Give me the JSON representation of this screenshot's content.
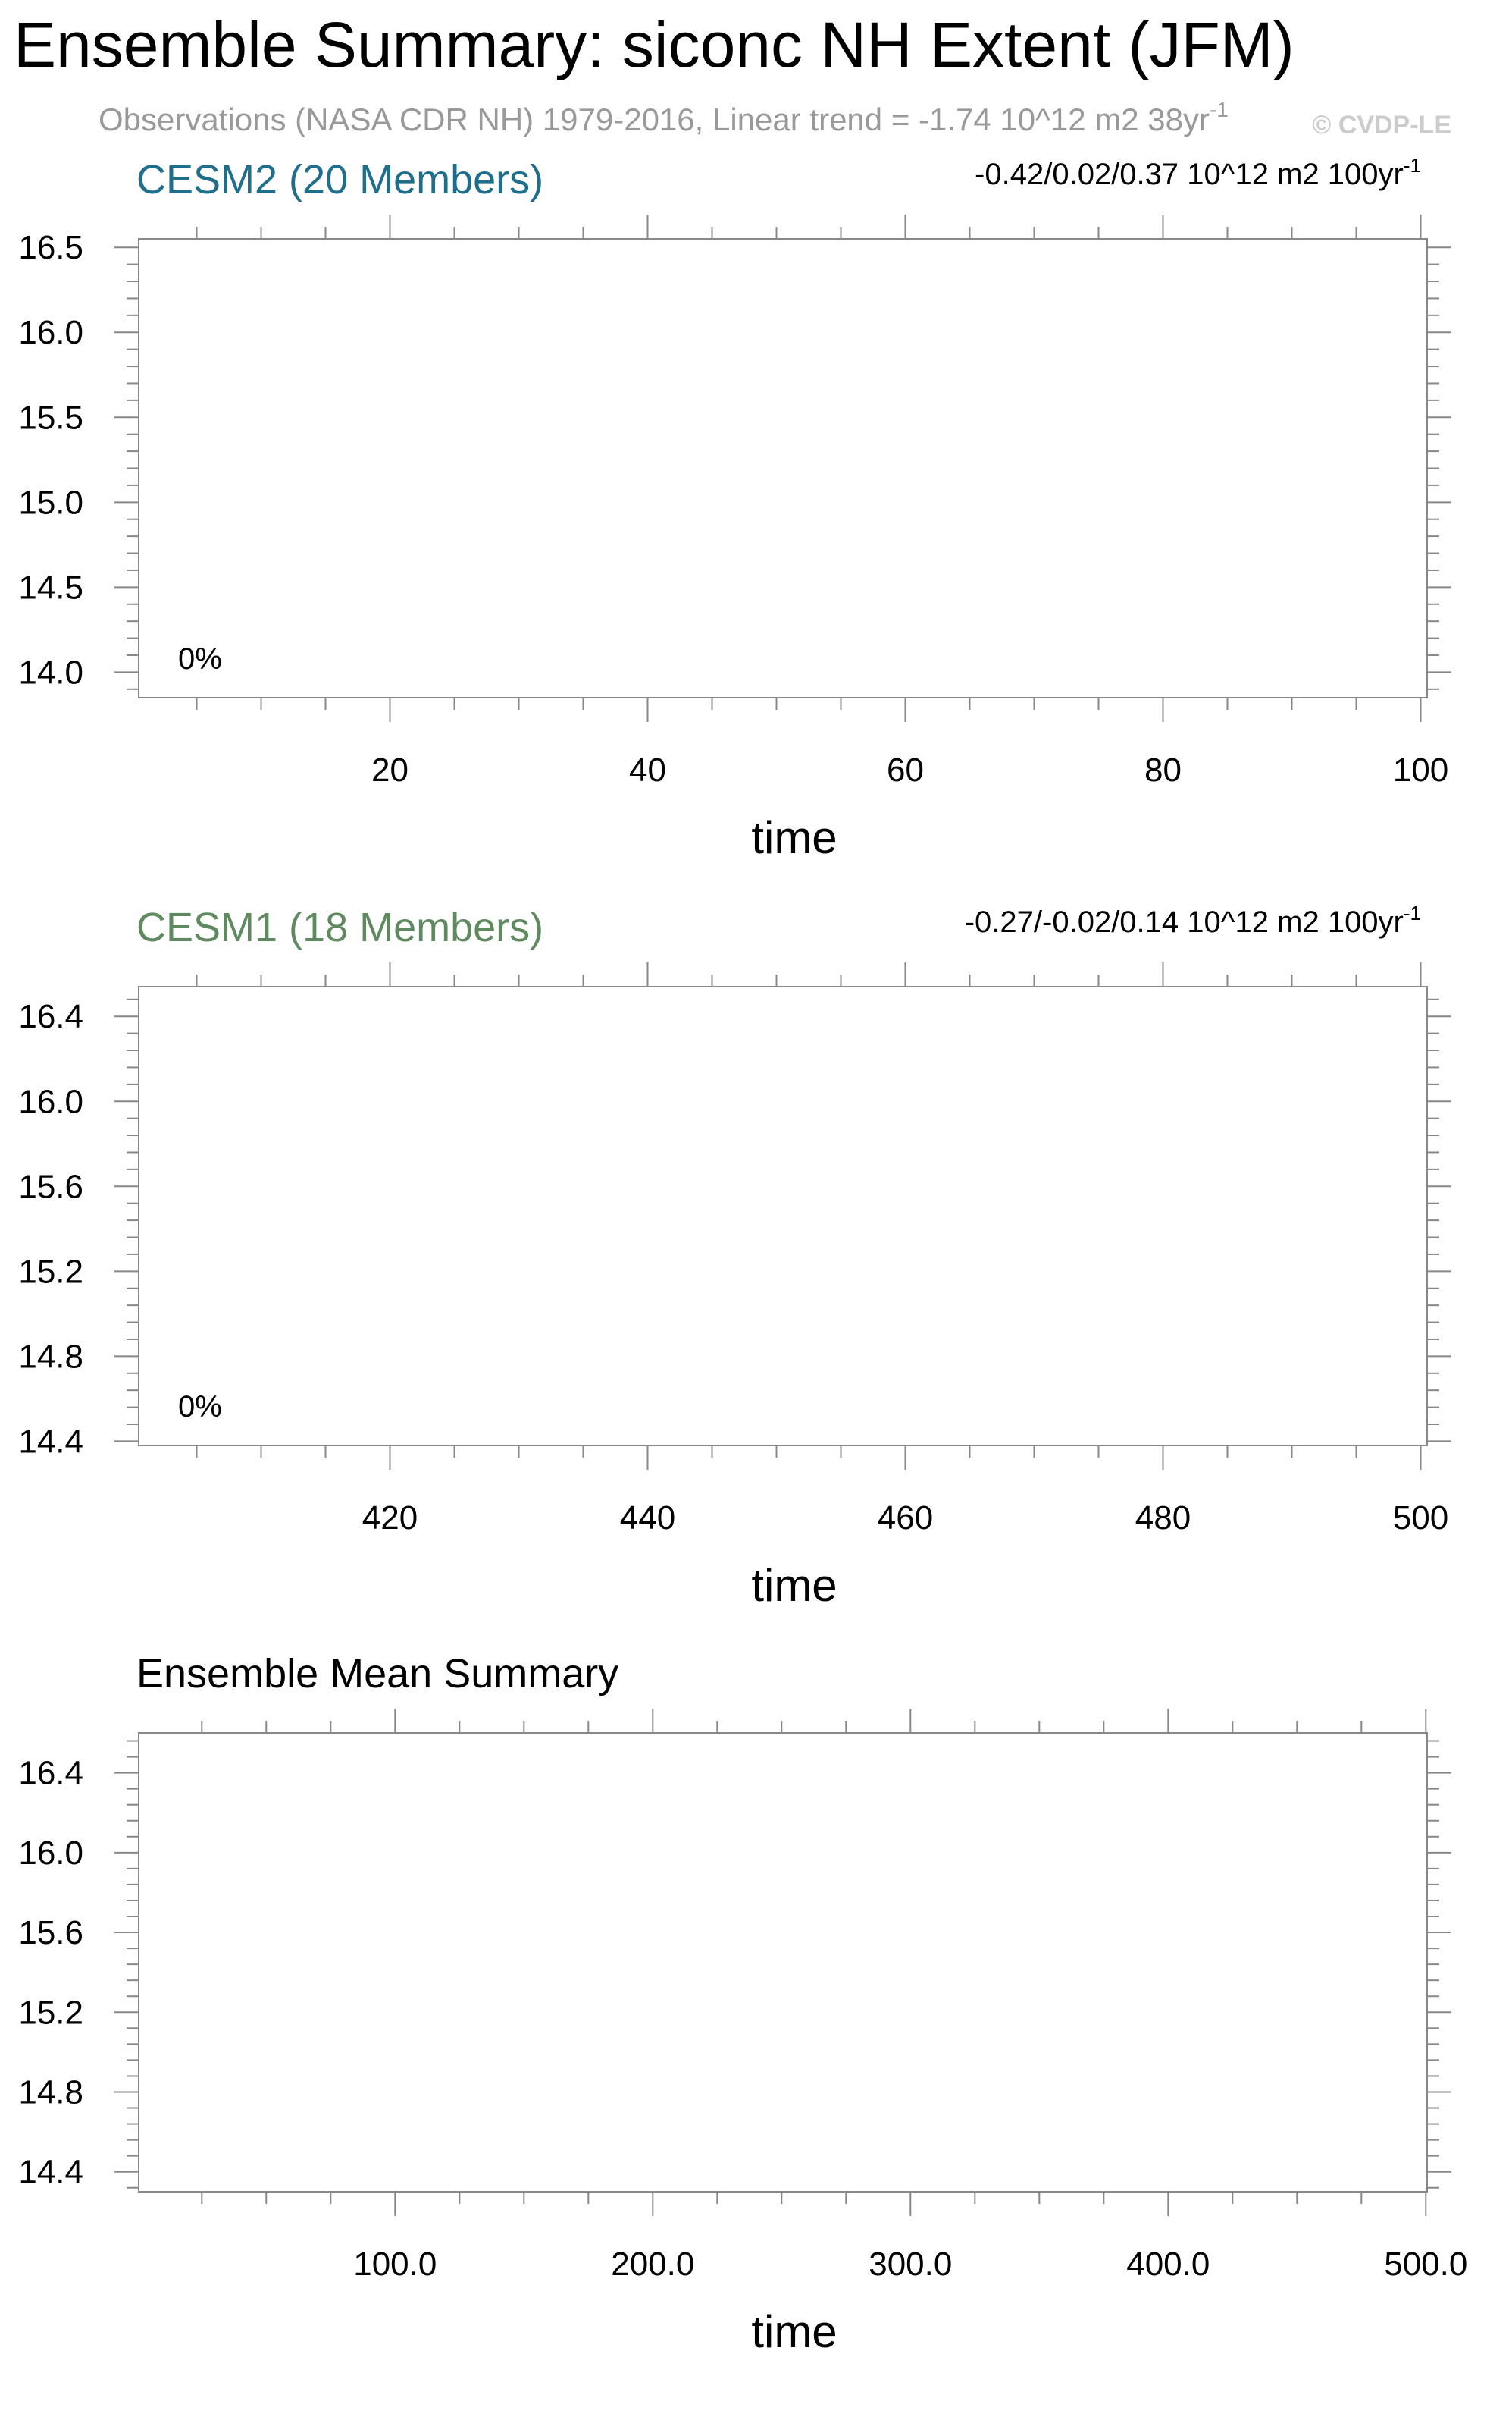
{
  "title": "Ensemble Summary: siconc NH Extent (JFM)",
  "subtitle": {
    "text": "Observations (NASA CDR NH) 1979-2016, Linear trend = -1.74 10^12 m2 38yr",
    "superscript": "-1"
  },
  "watermark": "© CVDP-LE",
  "colors": {
    "cesm2": "#1f6e8c",
    "cesm1": "#5f8a5f",
    "subtitle": "#999999",
    "watermark": "#cccccc",
    "axis": "#888888",
    "text": "#000000"
  },
  "chart_data": [
    {
      "type": "line",
      "title": "CESM2 (20 Members)",
      "right_label": "-0.42/0.02/0.37 10^12 m2 100yr",
      "right_label_superscript": "-1",
      "annotation": "0%",
      "xlabel": "time",
      "ylabel": "",
      "xlim": [
        0.5,
        100.5
      ],
      "ylim": [
        13.85,
        16.55
      ],
      "x_ticks": [
        20,
        40,
        60,
        80,
        100
      ],
      "x_tick_labels": [
        "20",
        "40",
        "60",
        "80",
        "100"
      ],
      "x_minor_step": 5,
      "y_ticks": [
        14.0,
        14.5,
        15.0,
        15.5,
        16.0,
        16.5
      ],
      "y_tick_labels": [
        "14.0",
        "14.5",
        "15.0",
        "15.5",
        "16.0",
        "16.5"
      ],
      "y_minor_step": 0.1,
      "grid": false,
      "series": []
    },
    {
      "type": "line",
      "title": "CESM1 (18 Members)",
      "right_label": "-0.27/-0.02/0.14 10^12 m2 100yr",
      "right_label_superscript": "-1",
      "annotation": "0%",
      "xlabel": "time",
      "ylabel": "",
      "xlim": [
        400.5,
        500.5
      ],
      "ylim": [
        14.38,
        16.54
      ],
      "x_ticks": [
        420,
        440,
        460,
        480,
        500
      ],
      "x_tick_labels": [
        "420",
        "440",
        "460",
        "480",
        "500"
      ],
      "x_minor_step": 5,
      "y_ticks": [
        14.4,
        14.8,
        15.2,
        15.6,
        16.0,
        16.4
      ],
      "y_tick_labels": [
        "14.4",
        "14.8",
        "15.2",
        "15.6",
        "16.0",
        "16.4"
      ],
      "y_minor_step": 0.08,
      "grid": false,
      "series": []
    },
    {
      "type": "line",
      "title": "Ensemble Mean Summary",
      "right_label": "",
      "right_label_superscript": "",
      "annotation": "",
      "xlabel": "time",
      "ylabel": "",
      "xlim": [
        0.5,
        500.5
      ],
      "ylim": [
        14.3,
        16.6
      ],
      "x_ticks": [
        100,
        200,
        300,
        400,
        500
      ],
      "x_tick_labels": [
        "100.0",
        "200.0",
        "300.0",
        "400.0",
        "500.0"
      ],
      "x_minor_step": 25,
      "y_ticks": [
        14.4,
        14.8,
        15.2,
        15.6,
        16.0,
        16.4
      ],
      "y_tick_labels": [
        "14.4",
        "14.8",
        "15.2",
        "15.6",
        "16.0",
        "16.4"
      ],
      "y_minor_step": 0.08,
      "grid": false,
      "series": []
    }
  ]
}
